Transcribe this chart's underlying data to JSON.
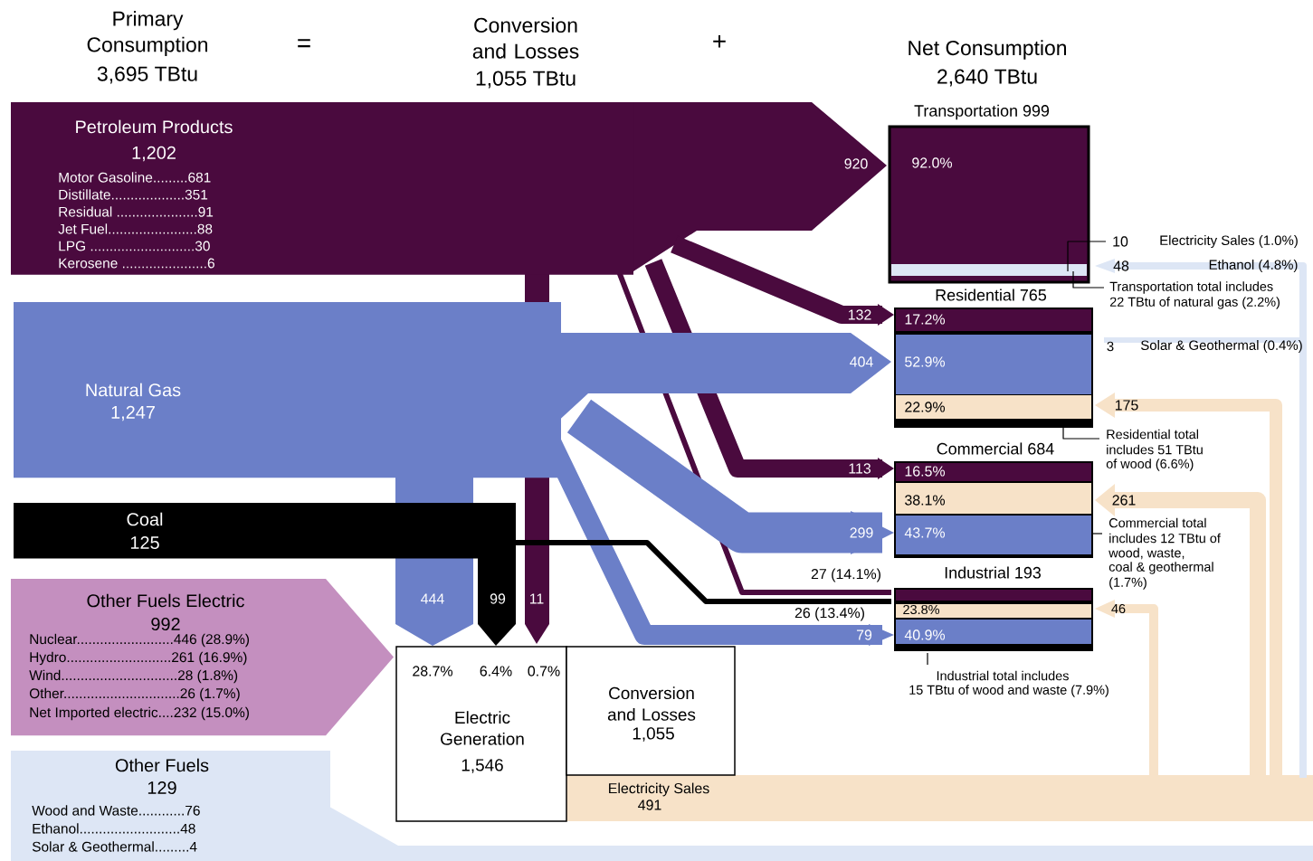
{
  "chart_data": {
    "type": "other",
    "categories": [
      "Petroleum Products",
      "Natural Gas",
      "Coal",
      "Other Fuels Electric",
      "Other Fuels"
    ],
    "values": [
      1202,
      1247,
      125,
      992,
      129
    ],
    "value_labels": [
      "1,202",
      "1,247",
      "125",
      "992",
      "129"
    ],
    "annotations": [
      "Primary Consumption",
      "3,695 TBtu",
      "=",
      "Conversion and Losses",
      "1,055 TBtu",
      "+",
      "Net Consumption",
      "2,640 TBtu",
      "Motor Gasoline.........681",
      "Distillate...................351",
      "Residual .....................91",
      "Jet Fuel.......................88",
      "LPG ...........................30",
      "Kerosene ......................6",
      "Nuclear.........................446 (28.9%)",
      "Hydro...........................261 (16.9%)",
      "Wind..............................28   (1.8%)",
      "Other..............................26   (1.7%)",
      "Net Imported electric....232 (15.0%)",
      "Wood and Waste............76",
      "Ethanol..........................48",
      "Solar & Geothermal.........4",
      "920",
      "92.0%",
      "Transportation  999",
      "10",
      "Electricity Sales (1.0%)",
      "48",
      "Ethanol  (4.8%)",
      "Transportation total includes",
      "22 TBtu of natural gas (2.2%)",
      "Residential   765",
      "132",
      "17.2%",
      "404",
      "52.9%",
      "22.9%",
      "3",
      "Solar & Geothermal (0.4%)",
      "175",
      "Residential total",
      "includes 51 TBtu",
      "of wood (6.6%)",
      "Commercial   684",
      "113",
      "16.5%",
      "38.1%",
      "299",
      "43.7%",
      "261",
      "Commercial total",
      "includes 12 TBtu of",
      "wood, waste,",
      "coal & geothermal",
      "(1.7%)",
      "27 (14.1%)",
      "Industrial   193",
      "26 (13.4%)",
      "79",
      "23.8%",
      "40.9%",
      "46",
      "Industrial total includes",
      "15 TBtu of wood and waste (7.9%)",
      "444",
      "99",
      "11",
      "28.7%",
      "6.4%",
      "0.7%",
      "Electric Generation",
      "1,546",
      "Conversion and Losses",
      "1,055",
      "Electricity Sales",
      "491"
    ]
  }
}
